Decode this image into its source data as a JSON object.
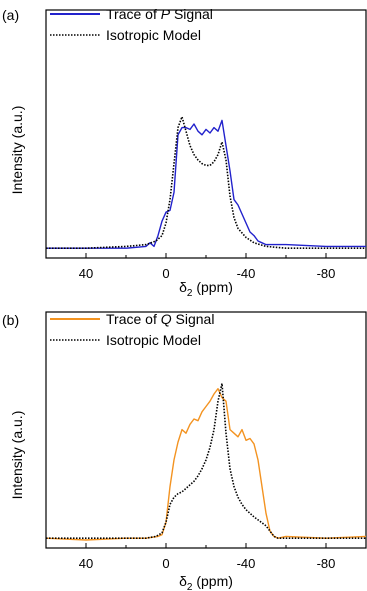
{
  "chart_data": [
    {
      "type": "line",
      "panel_label": "(a)",
      "xlabel": "δ2 (ppm)",
      "xlabel_main": "δ",
      "xlabel_sub": "2",
      "xlabel_unit": " (ppm)",
      "ylabel": "Intensity (a.u.)",
      "xlim": [
        60,
        -100
      ],
      "ylim": [
        0,
        1
      ],
      "x_ticks": [
        40,
        0,
        -40,
        -80
      ],
      "tick_labels": [
        "40",
        "0",
        "-40",
        "-80"
      ],
      "legend_position": "top-left",
      "series": [
        {
          "name": "Trace of P Signal",
          "name_prefix": "Trace of ",
          "name_italic": "P",
          "name_suffix": " Signal",
          "color": "#2222cc",
          "style": "solid",
          "x": [
            60,
            40,
            20,
            10,
            8,
            6,
            4,
            2,
            0,
            -2,
            -4,
            -6,
            -8,
            -10,
            -12,
            -14,
            -16,
            -18,
            -20,
            -22,
            -24,
            -26,
            -28,
            -30,
            -32,
            -34,
            -36,
            -38,
            -40,
            -42,
            -44,
            -46,
            -48,
            -50,
            -60,
            -80,
            -100
          ],
          "y": [
            0.01,
            0.01,
            0.01,
            0.02,
            0.04,
            0.02,
            0.08,
            0.16,
            0.21,
            0.22,
            0.32,
            0.64,
            0.68,
            0.68,
            0.67,
            0.7,
            0.66,
            0.64,
            0.67,
            0.65,
            0.68,
            0.66,
            0.72,
            0.58,
            0.44,
            0.28,
            0.25,
            0.2,
            0.15,
            0.1,
            0.08,
            0.05,
            0.04,
            0.03,
            0.03,
            0.02,
            0.02
          ]
        },
        {
          "name": "Isotropic Model",
          "color": "#000000",
          "style": "dotted",
          "x": [
            60,
            40,
            20,
            10,
            5,
            2,
            0,
            -2,
            -4,
            -6,
            -8,
            -10,
            -12,
            -14,
            -16,
            -18,
            -20,
            -22,
            -24,
            -26,
            -28,
            -30,
            -32,
            -34,
            -36,
            -40,
            -44,
            -50,
            -60,
            -80,
            -100
          ],
          "y": [
            0.01,
            0.01,
            0.02,
            0.03,
            0.05,
            0.08,
            0.15,
            0.28,
            0.48,
            0.68,
            0.74,
            0.66,
            0.58,
            0.53,
            0.5,
            0.48,
            0.47,
            0.47,
            0.49,
            0.53,
            0.6,
            0.5,
            0.3,
            0.18,
            0.12,
            0.07,
            0.04,
            0.02,
            0.01,
            0.01,
            0.01
          ]
        }
      ]
    },
    {
      "type": "line",
      "panel_label": "(b)",
      "xlabel": "δ2 (ppm)",
      "xlabel_main": "δ",
      "xlabel_sub": "2",
      "xlabel_unit": " (ppm)",
      "ylabel": "Intensity (a.u.)",
      "xlim": [
        60,
        -100
      ],
      "ylim": [
        0,
        1
      ],
      "x_ticks": [
        40,
        0,
        -40,
        -80
      ],
      "tick_labels": [
        "40",
        "0",
        "-40",
        "-80"
      ],
      "legend_position": "top-left",
      "series": [
        {
          "name": "Trace of Q Signal",
          "name_prefix": "Trace of ",
          "name_italic": "Q",
          "name_suffix": " Signal",
          "color": "#f39321",
          "style": "solid",
          "x": [
            60,
            40,
            20,
            10,
            4,
            2,
            0,
            -2,
            -4,
            -6,
            -8,
            -10,
            -12,
            -14,
            -16,
            -18,
            -20,
            -22,
            -24,
            -26,
            -28,
            -30,
            -32,
            -34,
            -36,
            -38,
            -40,
            -42,
            -44,
            -46,
            -48,
            -50,
            -52,
            -54,
            -56,
            -60,
            -80,
            -100
          ],
          "y": [
            0.01,
            0.0,
            0.01,
            0.01,
            0.02,
            0.03,
            0.1,
            0.3,
            0.45,
            0.55,
            0.62,
            0.6,
            0.65,
            0.68,
            0.67,
            0.72,
            0.75,
            0.78,
            0.82,
            0.85,
            0.8,
            0.78,
            0.62,
            0.6,
            0.58,
            0.62,
            0.56,
            0.57,
            0.54,
            0.45,
            0.3,
            0.15,
            0.05,
            0.02,
            0.01,
            0.02,
            0.01,
            0.02
          ]
        },
        {
          "name": "Isotropic Model",
          "color": "#000000",
          "style": "dotted",
          "x": [
            60,
            40,
            20,
            10,
            5,
            2,
            0,
            -2,
            -4,
            -6,
            -8,
            -10,
            -12,
            -14,
            -16,
            -18,
            -20,
            -22,
            -24,
            -26,
            -28,
            -30,
            -32,
            -34,
            -36,
            -38,
            -40,
            -44,
            -50,
            -54,
            -56,
            -60,
            -80,
            -100
          ],
          "y": [
            0.01,
            0.01,
            0.01,
            0.01,
            0.02,
            0.04,
            0.1,
            0.2,
            0.24,
            0.26,
            0.27,
            0.29,
            0.31,
            0.33,
            0.36,
            0.4,
            0.45,
            0.52,
            0.62,
            0.78,
            0.88,
            0.6,
            0.4,
            0.3,
            0.24,
            0.2,
            0.17,
            0.13,
            0.08,
            0.02,
            0.01,
            0.01,
            0.01,
            0.01
          ]
        }
      ]
    }
  ]
}
